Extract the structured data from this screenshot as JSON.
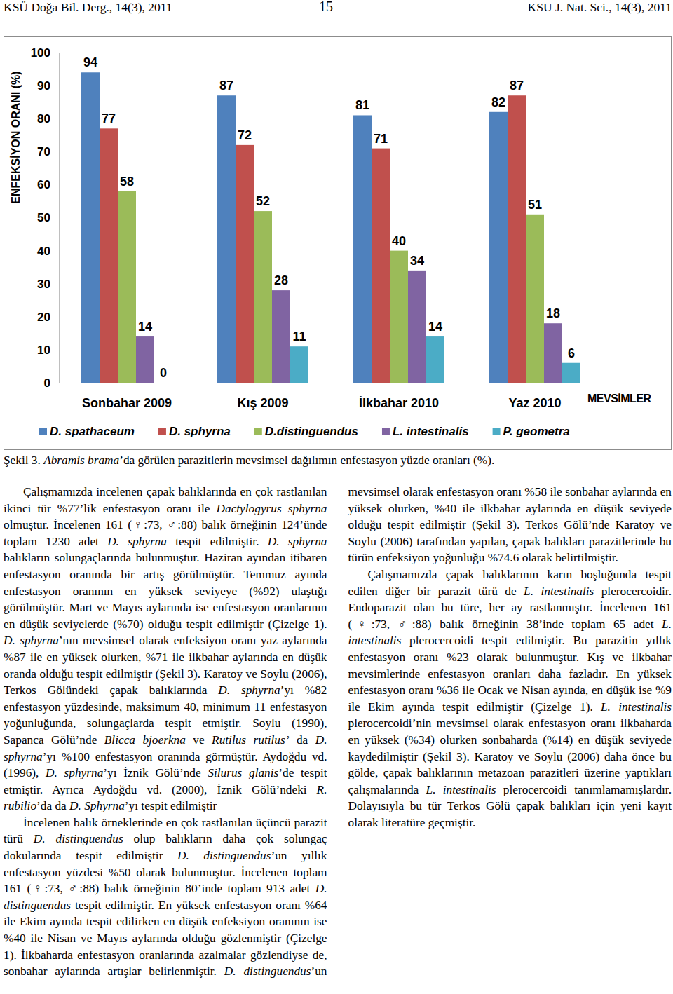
{
  "header": {
    "left": "KSÜ Doğa Bil. Derg., 14(3), 2011",
    "page": "15",
    "right": "KSU J. Nat. Sci., 14(3), 2011"
  },
  "chart_data": {
    "type": "bar",
    "y_label": "ENFEKSİYON ORANI (%)",
    "x_label": "MEVSİMLER",
    "categories": [
      "Sonbahar 2009",
      "Kış 2009",
      "İlkbahar 2010",
      "Yaz 2010"
    ],
    "series": [
      {
        "name": "D. spathaceum",
        "color": "#4f81bd",
        "values": [
          94,
          87,
          81,
          82
        ]
      },
      {
        "name": "D. sphyrna",
        "color": "#c0504d",
        "values": [
          77,
          72,
          71,
          87
        ]
      },
      {
        "name": "D.distinguendus",
        "color": "#9bbb59",
        "values": [
          58,
          52,
          40,
          51
        ]
      },
      {
        "name": "L. intestinalis",
        "color": "#8064a2",
        "values": [
          14,
          28,
          34,
          18
        ]
      },
      {
        "name": "P. geometra",
        "color": "#4bacc6",
        "values": [
          0,
          11,
          14,
          6
        ]
      }
    ],
    "ylim": [
      0,
      100
    ],
    "yticks": [
      0,
      10,
      20,
      30,
      40,
      50,
      60,
      70,
      80,
      90,
      100
    ],
    "grid": false,
    "legend": "bottom",
    "data_labels": true
  },
  "caption": [
    {
      "text": "Şekil 3. "
    },
    {
      "text": "Abramis brama",
      "italic": true
    },
    {
      "text": "’da görülen parazitlerin mevsimsel dağılımın enfestasyon yüzde oranları (%)."
    }
  ],
  "body": {
    "paragraphs": [
      [
        {
          "text": "Çalışmamızda incelenen çapak balıklarında en çok rastlanılan ikinci tür %77’lik enfestasyon oranı ile "
        },
        {
          "text": "Dactylogyrus sphyrna",
          "italic": true
        },
        {
          "text": " olmuştur. İncelenen 161 (♀:73, ♂:88) balık örneğinin 124’ünde toplam 1230 adet "
        },
        {
          "text": "D. sphyrna",
          "italic": true
        },
        {
          "text": " tespit edilmiştir. "
        },
        {
          "text": "D. sphyrna",
          "italic": true
        },
        {
          "text": " balıkların solungaçlarında bulunmuştur. Haziran ayından itibaren enfestasyon oranında bir artış görülmüştür. Temmuz ayında enfestasyon oranının en yüksek seviyeye (%92) ulaştığı görülmüştür. Mart ve Mayıs aylarında ise enfestasyon oranlarının en düşük seviyelerde (%70) olduğu tespit edilmiştir (Çizelge 1). "
        },
        {
          "text": "D. sphyrna",
          "italic": true
        },
        {
          "text": "’nın mevsimsel olarak enfeksiyon oranı yaz aylarında %87 ile en yüksek olurken, %71 ile ilkbahar aylarında en düşük oranda olduğu tespit edilmiştir (Şekil 3). Karatoy ve Soylu (2006), Terkos Gölündeki çapak balıklarında "
        },
        {
          "text": "D. sphyrna",
          "italic": true
        },
        {
          "text": "’yı %82 enfestasyon yüzdesinde, maksimum 40, minimum 11 enfestasyon yoğunluğunda, solungaçlarda tespit etmiştir. Soylu (1990), Sapanca Gölü’nde "
        },
        {
          "text": "Blicca bjoerkna",
          "italic": true
        },
        {
          "text": " ve "
        },
        {
          "text": "Rutilus rutilus’",
          "italic": true
        },
        {
          "text": " da "
        },
        {
          "text": "D. sphyrna",
          "italic": true
        },
        {
          "text": "’yı %100 enfestasyon oranında görmüştür. Aydoğdu vd. (1996), "
        },
        {
          "text": "D. sphyrna",
          "italic": true
        },
        {
          "text": "’yı İznik Gölü’nde "
        },
        {
          "text": "Silurus glanis",
          "italic": true
        },
        {
          "text": "’de tespit etmiştir. Ayrıca Aydoğdu vd. (2000), İznik Gölü’ndeki "
        },
        {
          "text": "R. rubilio",
          "italic": true
        },
        {
          "text": "’da da "
        },
        {
          "text": "D. Sphyrna",
          "italic": true
        },
        {
          "text": "’yı tespit edilmiştir"
        }
      ],
      [
        {
          "text": "İncelenen balık örneklerinde en çok rastlanılan üçüncü parazit türü "
        },
        {
          "text": "D. distinguendus",
          "italic": true
        },
        {
          "text": " olup balıkların daha çok solungaç dokularında tespit edilmiştir "
        },
        {
          "text": "D. distinguendus",
          "italic": true
        },
        {
          "text": "’un yıllık enfestasyon yüzdesi %50 olarak bulunmuştur. İncelenen toplam 161 (♀:73, ♂:88) balık örneğinin 80’inde toplam 913 adet "
        },
        {
          "text": "D. distinguendus",
          "italic": true
        },
        {
          "text": " tespit edilmiştir. En yüksek enfestasyon oranı %64 ile Ekim ayında tespit edilirken en düşük enfeksiyon oranının ise %40 ile Nisan ve Mayıs aylarında olduğu gözlenmiştir (Çizelge 1). İlkbaharda enfestasyon oranlarında azalmalar gözlendiyse de, sonbahar aylarında artışlar belirlenmiştir. "
        },
        {
          "text": "D. distinguendus",
          "italic": true
        },
        {
          "text": "’un mevsimsel olarak enfestasyon oranı %58 ile sonbahar aylarında en yüksek olurken, %40 ile ilkbahar aylarında en düşük seviyede olduğu tespit edilmiştir (Şekil 3). Terkos Gölü’nde Karatoy ve Soylu (2006) tarafından yapılan, çapak balıkları parazitlerinde bu türün enfeksiyon yoğunluğu %74.6 olarak belirtilmiştir."
        }
      ],
      [
        {
          "text": "Çalışmamızda çapak balıklarının karın boşluğunda tespit edilen diğer bir parazit türü de "
        },
        {
          "text": "L. intestinalis",
          "italic": true
        },
        {
          "text": " plerocercoidir. Endoparazit olan bu türe, her ay rastlanmıştır. İncelenen 161 (♀:73, ♂:88) balık örneğinin 38’inde toplam 65 adet "
        },
        {
          "text": "L. intestinalis",
          "italic": true
        },
        {
          "text": " plerocercoidi tespit edilmiştir. Bu parazitin yıllık enfestasyon oranı %23 olarak bulunmuştur. Kış ve ilkbahar mevsimlerinde enfestasyon oranları daha fazladır. En yüksek enfestasyon oranı %36 ile Ocak ve Nisan ayında, en düşük ise %9 ile Ekim ayında tespit edilmiştir (Çizelge 1). "
        },
        {
          "text": "L. intestinalis",
          "italic": true
        },
        {
          "text": " plerocercoidi’nin mevsimsel olarak enfestasyon oranı ilkbaharda en yüksek (%34) olurken sonbaharda (%14) en düşük seviyede kaydedilmiştir (Şekil 3). Karatoy ve Soylu (2006) daha önce bu gölde, çapak balıklarının metazoan parazitleri üzerine yaptıkları çalışmalarında "
        },
        {
          "text": "L. intestinalis",
          "italic": true
        },
        {
          "text": " plerocercoidi tanımlamamışlardır. Dolayısıyla bu tür Terkos Gölü çapak balıkları için yeni kayıt olarak literatüre geçmiştir."
        }
      ]
    ]
  }
}
